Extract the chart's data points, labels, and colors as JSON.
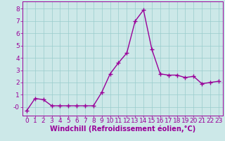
{
  "x": [
    0,
    1,
    2,
    3,
    4,
    5,
    6,
    7,
    8,
    9,
    10,
    11,
    12,
    13,
    14,
    15,
    16,
    17,
    18,
    19,
    20,
    21,
    22,
    23
  ],
  "y": [
    -0.3,
    0.7,
    0.6,
    0.1,
    0.1,
    0.1,
    0.1,
    0.1,
    0.1,
    1.2,
    2.7,
    3.6,
    4.4,
    7.0,
    7.9,
    4.7,
    2.7,
    2.6,
    2.6,
    2.4,
    2.5,
    1.9,
    2.0,
    2.1
  ],
  "line_color": "#990099",
  "marker": "+",
  "marker_size": 4,
  "linewidth": 1.0,
  "bg_color": "#cce8e8",
  "grid_color": "#99cccc",
  "xlabel": "Windchill (Refroidissement éolien,°C)",
  "xlabel_color": "#990099",
  "tick_color": "#990099",
  "xlabel_fontsize": 7,
  "tick_fontsize": 6.5,
  "ylim": [
    -0.7,
    8.6
  ],
  "xlim": [
    -0.5,
    23.5
  ],
  "yticks": [
    0,
    1,
    2,
    3,
    4,
    5,
    6,
    7,
    8
  ],
  "ytick_labels": [
    "-0",
    "1",
    "2",
    "3",
    "4",
    "5",
    "6",
    "7",
    "8"
  ],
  "xticks": [
    0,
    1,
    2,
    3,
    4,
    5,
    6,
    7,
    8,
    9,
    10,
    11,
    12,
    13,
    14,
    15,
    16,
    17,
    18,
    19,
    20,
    21,
    22,
    23
  ]
}
